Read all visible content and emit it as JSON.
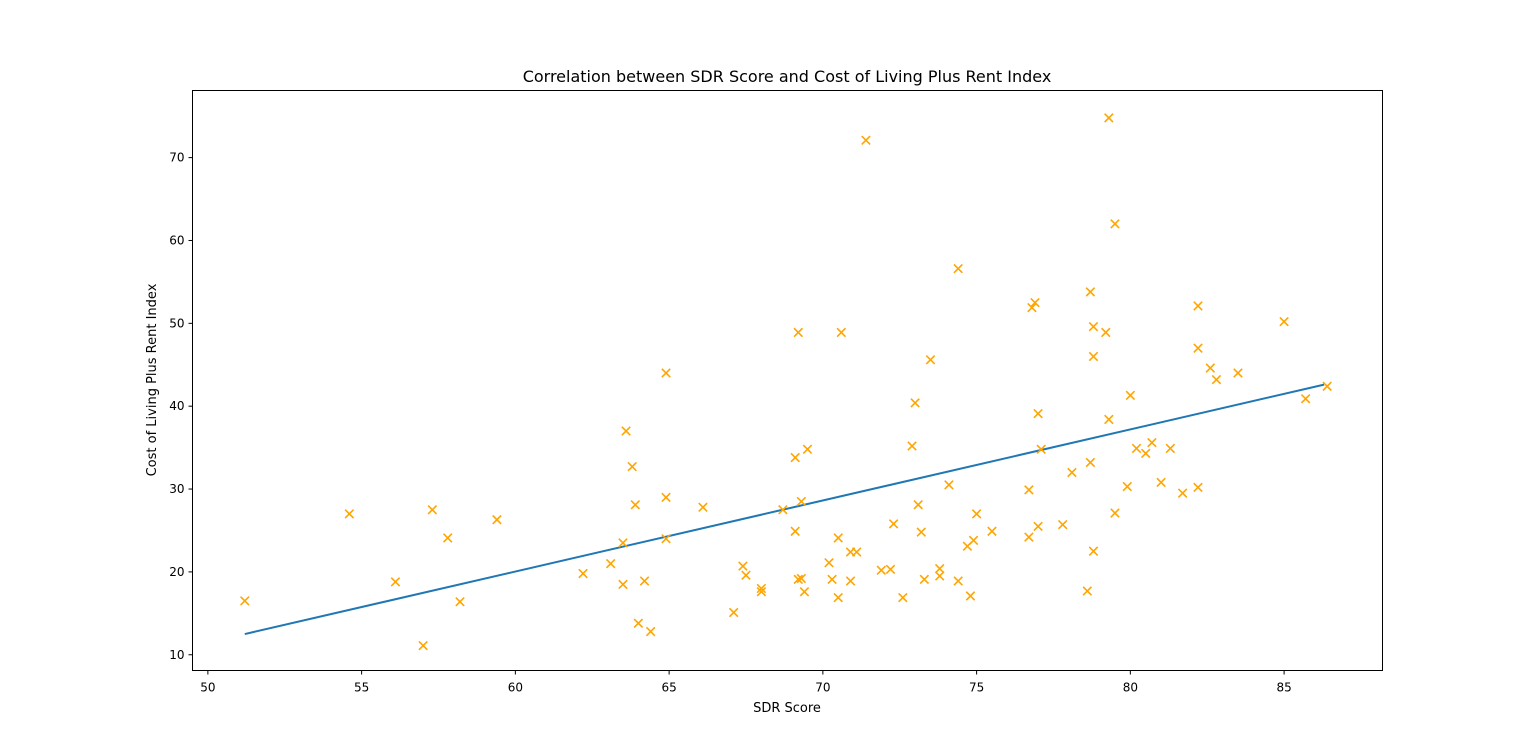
{
  "chart_data": {
    "type": "scatter",
    "title": "Correlation between SDR Score and Cost of Living Plus Rent Index",
    "xlabel": "SDR Score",
    "ylabel": "Cost of Living Plus Rent Index",
    "xlim": [
      49.5,
      88.2
    ],
    "ylim": [
      8.1,
      78.1
    ],
    "xticks": [
      50,
      55,
      60,
      65,
      70,
      75,
      80,
      85
    ],
    "yticks": [
      10,
      20,
      30,
      40,
      50,
      60,
      70
    ],
    "grid": false,
    "legend": "none",
    "marker_color": "#FFA500",
    "line_color": "#1F77B4",
    "trendline": {
      "x": [
        51.2,
        86.3
      ],
      "y": [
        12.5,
        42.6
      ]
    },
    "points": [
      {
        "x": 51.2,
        "y": 16.5
      },
      {
        "x": 54.6,
        "y": 27.0
      },
      {
        "x": 56.1,
        "y": 18.8
      },
      {
        "x": 57.0,
        "y": 11.1
      },
      {
        "x": 57.3,
        "y": 27.5
      },
      {
        "x": 57.8,
        "y": 24.1
      },
      {
        "x": 58.2,
        "y": 16.4
      },
      {
        "x": 59.4,
        "y": 26.3
      },
      {
        "x": 62.2,
        "y": 19.8
      },
      {
        "x": 63.1,
        "y": 21.0
      },
      {
        "x": 63.5,
        "y": 18.5
      },
      {
        "x": 63.5,
        "y": 23.5
      },
      {
        "x": 63.6,
        "y": 37.0
      },
      {
        "x": 63.8,
        "y": 32.7
      },
      {
        "x": 63.9,
        "y": 28.1
      },
      {
        "x": 64.0,
        "y": 13.8
      },
      {
        "x": 64.2,
        "y": 18.9
      },
      {
        "x": 64.4,
        "y": 12.8
      },
      {
        "x": 64.9,
        "y": 44.0
      },
      {
        "x": 64.9,
        "y": 29.0
      },
      {
        "x": 64.9,
        "y": 24.0
      },
      {
        "x": 66.1,
        "y": 27.8
      },
      {
        "x": 67.1,
        "y": 15.1
      },
      {
        "x": 67.4,
        "y": 20.7
      },
      {
        "x": 67.5,
        "y": 19.6
      },
      {
        "x": 68.0,
        "y": 18.0
      },
      {
        "x": 68.0,
        "y": 17.6
      },
      {
        "x": 68.7,
        "y": 27.5
      },
      {
        "x": 69.1,
        "y": 33.8
      },
      {
        "x": 69.1,
        "y": 24.9
      },
      {
        "x": 69.2,
        "y": 48.9
      },
      {
        "x": 69.2,
        "y": 19.1
      },
      {
        "x": 69.3,
        "y": 28.5
      },
      {
        "x": 69.3,
        "y": 19.2
      },
      {
        "x": 69.4,
        "y": 17.6
      },
      {
        "x": 69.5,
        "y": 34.8
      },
      {
        "x": 70.2,
        "y": 21.1
      },
      {
        "x": 70.3,
        "y": 19.1
      },
      {
        "x": 70.5,
        "y": 24.1
      },
      {
        "x": 70.5,
        "y": 16.9
      },
      {
        "x": 70.6,
        "y": 48.9
      },
      {
        "x": 70.9,
        "y": 22.4
      },
      {
        "x": 70.9,
        "y": 18.9
      },
      {
        "x": 71.1,
        "y": 22.4
      },
      {
        "x": 71.4,
        "y": 72.1
      },
      {
        "x": 71.9,
        "y": 20.2
      },
      {
        "x": 72.2,
        "y": 20.3
      },
      {
        "x": 72.3,
        "y": 25.8
      },
      {
        "x": 72.6,
        "y": 16.9
      },
      {
        "x": 72.9,
        "y": 35.2
      },
      {
        "x": 73.0,
        "y": 40.4
      },
      {
        "x": 73.1,
        "y": 28.1
      },
      {
        "x": 73.2,
        "y": 24.8
      },
      {
        "x": 73.3,
        "y": 19.1
      },
      {
        "x": 73.5,
        "y": 45.6
      },
      {
        "x": 73.8,
        "y": 20.4
      },
      {
        "x": 73.8,
        "y": 19.5
      },
      {
        "x": 74.1,
        "y": 30.5
      },
      {
        "x": 74.4,
        "y": 56.6
      },
      {
        "x": 74.4,
        "y": 18.9
      },
      {
        "x": 74.7,
        "y": 23.1
      },
      {
        "x": 74.8,
        "y": 17.1
      },
      {
        "x": 74.9,
        "y": 23.8
      },
      {
        "x": 75.0,
        "y": 27.0
      },
      {
        "x": 75.5,
        "y": 24.9
      },
      {
        "x": 76.7,
        "y": 29.9
      },
      {
        "x": 76.7,
        "y": 24.2
      },
      {
        "x": 76.8,
        "y": 51.9
      },
      {
        "x": 76.9,
        "y": 52.5
      },
      {
        "x": 77.0,
        "y": 39.1
      },
      {
        "x": 77.0,
        "y": 25.5
      },
      {
        "x": 77.1,
        "y": 34.8
      },
      {
        "x": 77.8,
        "y": 25.7
      },
      {
        "x": 78.1,
        "y": 32.0
      },
      {
        "x": 78.6,
        "y": 17.7
      },
      {
        "x": 78.7,
        "y": 53.8
      },
      {
        "x": 78.7,
        "y": 33.2
      },
      {
        "x": 78.8,
        "y": 49.6
      },
      {
        "x": 78.8,
        "y": 46.0
      },
      {
        "x": 78.8,
        "y": 22.5
      },
      {
        "x": 79.2,
        "y": 48.9
      },
      {
        "x": 79.3,
        "y": 74.8
      },
      {
        "x": 79.3,
        "y": 38.4
      },
      {
        "x": 79.5,
        "y": 62.0
      },
      {
        "x": 79.5,
        "y": 27.1
      },
      {
        "x": 79.9,
        "y": 30.3
      },
      {
        "x": 80.0,
        "y": 41.3
      },
      {
        "x": 80.2,
        "y": 34.9
      },
      {
        "x": 80.5,
        "y": 34.3
      },
      {
        "x": 80.7,
        "y": 35.6
      },
      {
        "x": 81.0,
        "y": 30.8
      },
      {
        "x": 81.3,
        "y": 34.9
      },
      {
        "x": 81.7,
        "y": 29.5
      },
      {
        "x": 82.2,
        "y": 52.1
      },
      {
        "x": 82.2,
        "y": 47.0
      },
      {
        "x": 82.2,
        "y": 30.2
      },
      {
        "x": 82.6,
        "y": 44.6
      },
      {
        "x": 82.8,
        "y": 43.2
      },
      {
        "x": 83.5,
        "y": 44.0
      },
      {
        "x": 85.0,
        "y": 50.2
      },
      {
        "x": 85.7,
        "y": 40.9
      },
      {
        "x": 86.4,
        "y": 42.4
      }
    ]
  }
}
